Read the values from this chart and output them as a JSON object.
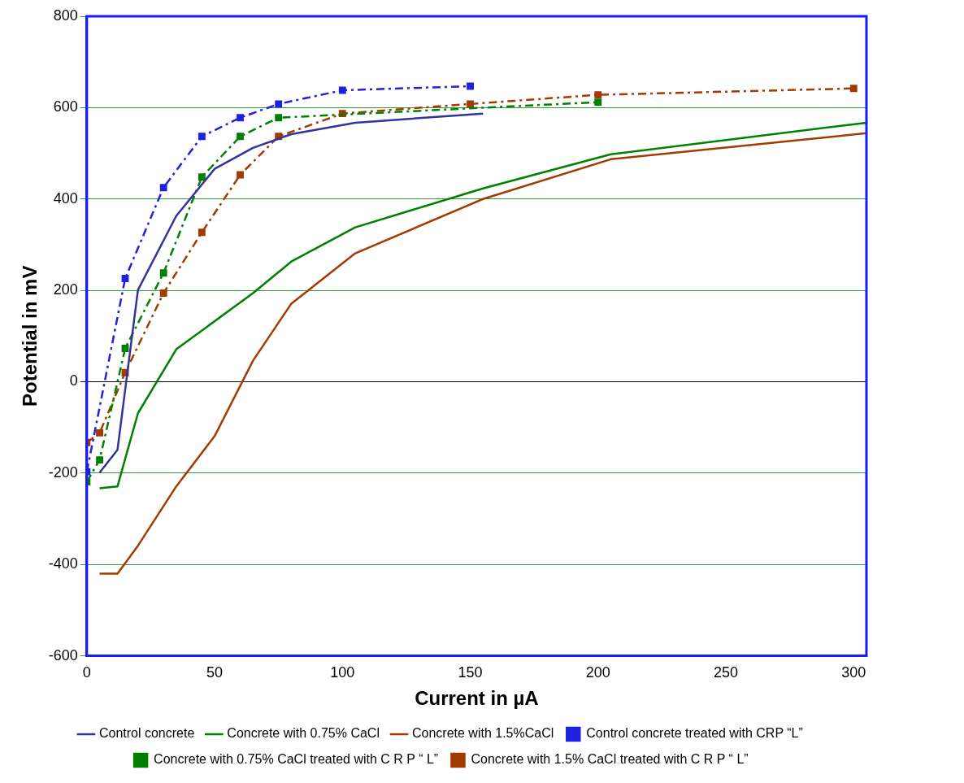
{
  "chart_data": {
    "type": "line",
    "xlabel": "Current in µA",
    "ylabel": "Potential in mV",
    "xlim": [
      0,
      305
    ],
    "xticks": [
      0,
      50,
      100,
      150,
      200,
      250,
      300
    ],
    "ylim": [
      -600,
      800
    ],
    "yticks": [
      -600,
      -400,
      -200,
      0,
      200,
      400,
      600,
      800
    ],
    "grid": "y",
    "legend": "bottom",
    "series": [
      {
        "name": "Control concrete",
        "color": "#33339c",
        "line_style": "solid",
        "marker": "none",
        "x": [
          5,
          12,
          20,
          35,
          50,
          65,
          80,
          105,
          155
        ],
        "values": [
          -199,
          -149,
          201,
          363,
          466,
          512,
          542,
          567,
          587
        ]
      },
      {
        "name": "Concrete with 0.75% CaCl",
        "color": "#008000",
        "line_style": "solid",
        "marker": "none",
        "x": [
          5,
          12,
          20,
          35,
          65,
          80,
          105,
          155,
          205,
          305
        ],
        "values": [
          -233,
          -229,
          -69,
          71,
          194,
          263,
          338,
          423,
          498,
          567
        ]
      },
      {
        "name": "Concrete with 1.5%CaCl",
        "color": "#a33a00",
        "line_style": "solid",
        "marker": "none",
        "x": [
          5,
          12,
          20,
          35,
          50,
          65,
          80,
          105,
          155,
          205,
          305
        ],
        "values": [
          -420,
          -420,
          -359,
          -229,
          -119,
          46,
          171,
          281,
          400,
          487,
          544
        ]
      },
      {
        "name": "Control concrete treated with CRP “L”",
        "color": "#2020e0",
        "line_style": "dashed",
        "marker": "square",
        "x": [
          0,
          15,
          30,
          45,
          60,
          75,
          100,
          150
        ],
        "values": [
          -197,
          226,
          425,
          537,
          578,
          608,
          638,
          647
        ]
      },
      {
        "name": "Concrete with 0.75% CaCl treated with C R P “ L”",
        "color": "#008000",
        "line_style": "dashed",
        "marker": "square",
        "x": [
          0,
          5,
          15,
          30,
          45,
          60,
          75,
          200
        ],
        "values": [
          -219,
          -171,
          73,
          238,
          448,
          537,
          578,
          612
        ]
      },
      {
        "name": "Concrete with 1.5% CaCl treated with C R P “ L”",
        "color": "#a33a00",
        "line_style": "dashed",
        "marker": "square",
        "x": [
          0,
          5,
          15,
          30,
          45,
          60,
          75,
          100,
          150,
          200,
          300
        ],
        "values": [
          -133,
          -112,
          20,
          194,
          327,
          453,
          537,
          587,
          608,
          628,
          642
        ]
      }
    ]
  }
}
